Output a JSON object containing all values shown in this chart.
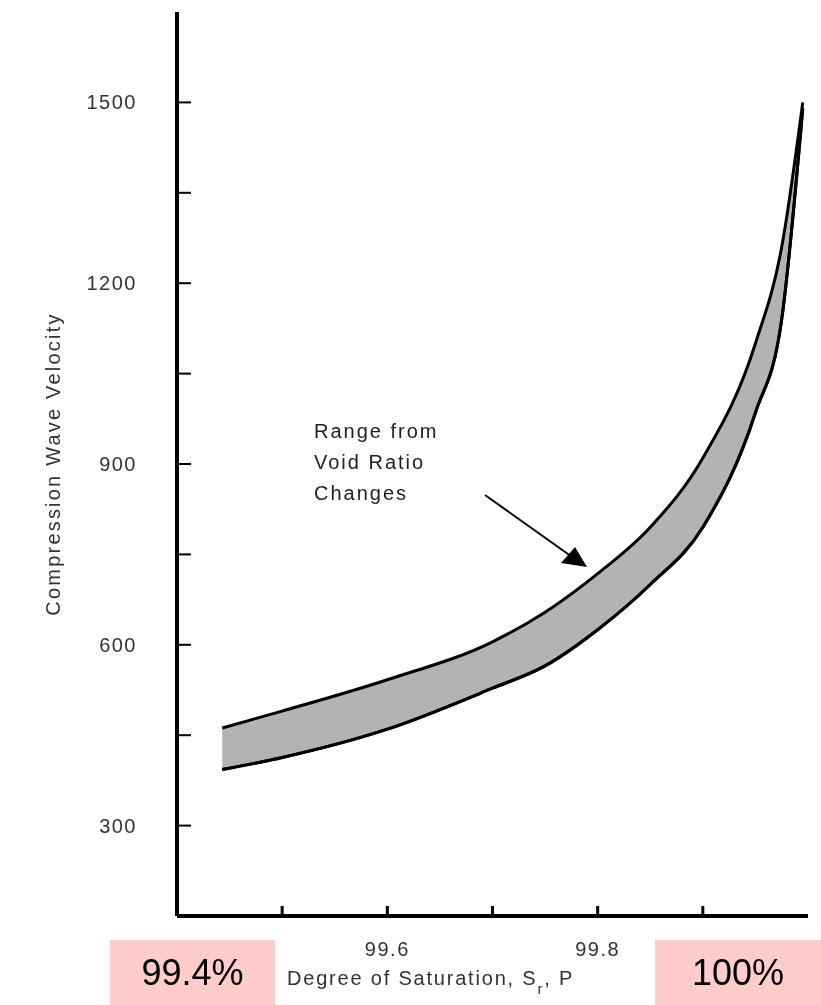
{
  "chart_data": {
    "type": "area",
    "xlabel": "Degree of Saturation, S$_{r}$, P",
    "ylabel": "Compression Wave Velocity",
    "xlim": [
      99.4,
      100
    ],
    "xticks": [
      {
        "value": 99.5,
        "label": null
      },
      {
        "value": 99.6,
        "label": "99.6"
      },
      {
        "value": 99.7,
        "label": null
      },
      {
        "value": 99.8,
        "label": "99.8"
      },
      {
        "value": 99.9,
        "label": null
      }
    ],
    "ylim": [
      150,
      1650
    ],
    "yticks": [
      300,
      {
        "value": 450,
        "label": null
      },
      600,
      {
        "value": 750,
        "label": null
      },
      900,
      {
        "value": 1050,
        "label": null
      },
      1200,
      {
        "value": 1350,
        "label": null
      },
      1500
    ],
    "series": [
      {
        "color": "#b3b3b3",
        "x": [
          99.443,
          99.5,
          99.6,
          99.7,
          99.75,
          99.8,
          99.85,
          99.9,
          99.95,
          99.975,
          99.995
        ],
        "values": [
          462,
          490,
          542,
          605,
          654,
          718,
          795,
          910,
          1100,
          1260,
          1500
        ]
      },
      {
        "type": "line",
        "color": "#000000",
        "x": [
          99.443,
          99.5,
          99.6,
          99.7,
          99.75,
          99.8,
          99.85,
          99.9,
          99.95,
          99.975,
          99.995
        ],
        "values": [
          393,
          413,
          460,
          528,
          565,
          625,
          700,
          795,
          985,
          1140,
          1490
        ]
      }
    ],
    "annotations": [
      "Range from\nVoid Ratio\nChanges",
      "99.4%",
      "100%"
    ]
  }
}
